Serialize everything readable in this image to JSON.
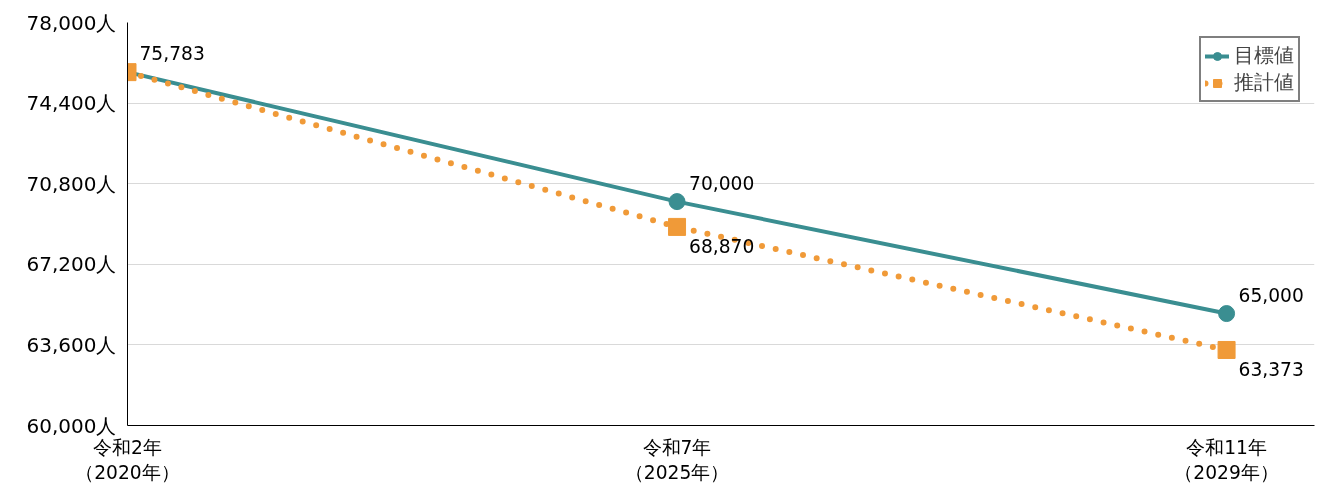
{
  "chart_data": {
    "type": "line",
    "categories": [
      "令和2年（2020年）",
      "令和7年（2025年）",
      "令和11年（2029年）"
    ],
    "series": [
      {
        "name": "目標値",
        "color": "#3a8e91",
        "values": [
          75783,
          70000,
          65000
        ],
        "marker": "circle",
        "line_style": "solid",
        "value_labels": [
          "75,783",
          "70,000",
          "65,000"
        ]
      },
      {
        "name": "推計値",
        "color": "#f09a38",
        "values": [
          75783,
          68870,
          63373
        ],
        "marker": "square",
        "line_style": "dotted",
        "value_labels": [
          null,
          "68,870",
          "63,373"
        ]
      }
    ],
    "ylim": [
      60000,
      78000
    ],
    "yticks": [
      {
        "value": 60000,
        "label": "60,000人"
      },
      {
        "value": 63600,
        "label": "63,600人"
      },
      {
        "value": 67200,
        "label": "67,200人"
      },
      {
        "value": 70800,
        "label": "70,800人"
      },
      {
        "value": 74400,
        "label": "74,400人"
      },
      {
        "value": 78000,
        "label": "78,000人"
      }
    ],
    "grid": "y",
    "legend": "top right"
  }
}
